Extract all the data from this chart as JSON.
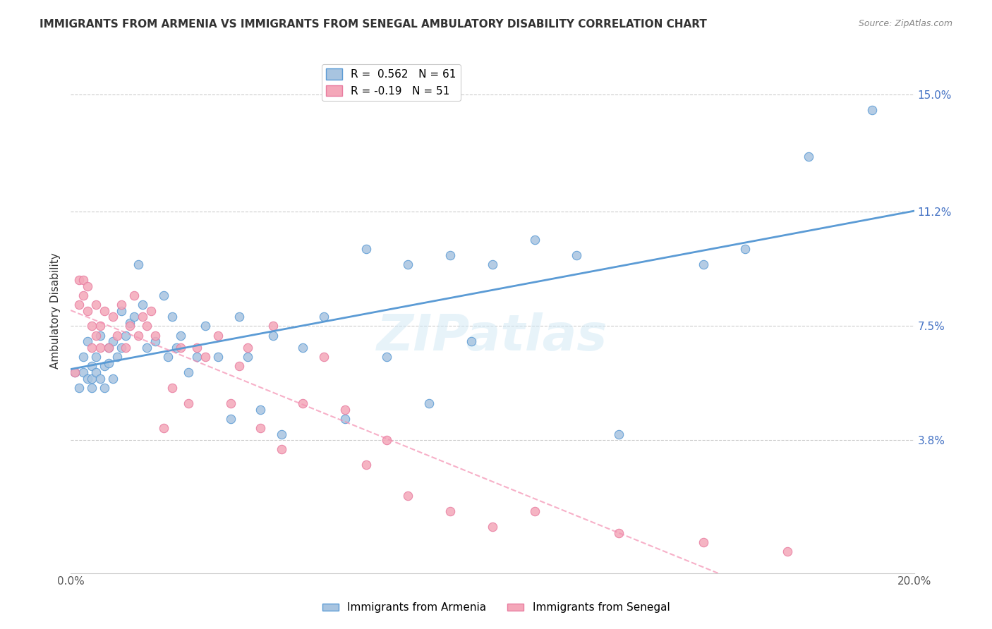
{
  "title": "IMMIGRANTS FROM ARMENIA VS IMMIGRANTS FROM SENEGAL AMBULATORY DISABILITY CORRELATION CHART",
  "source": "Source: ZipAtlas.com",
  "xlabel_bottom": "",
  "ylabel": "Ambulatory Disability",
  "xlim": [
    0.0,
    0.2
  ],
  "ylim": [
    -0.005,
    0.165
  ],
  "xticks": [
    0.0,
    0.04,
    0.08,
    0.12,
    0.16,
    0.2
  ],
  "xticklabels": [
    "0.0%",
    "",
    "",
    "",
    "",
    "20.0%"
  ],
  "ytick_positions": [
    0.038,
    0.075,
    0.112,
    0.15
  ],
  "ytick_labels": [
    "3.8%",
    "7.5%",
    "11.2%",
    "15.0%"
  ],
  "armenia_R": 0.562,
  "armenia_N": 61,
  "senegal_R": -0.19,
  "senegal_N": 51,
  "armenia_color": "#a8c4e0",
  "senegal_color": "#f4a7b9",
  "armenia_line_color": "#5b9bd5",
  "senegal_line_color": "#f48fb1",
  "watermark": "ZIPatlas",
  "armenia_x": [
    0.001,
    0.002,
    0.003,
    0.003,
    0.004,
    0.004,
    0.005,
    0.005,
    0.005,
    0.006,
    0.006,
    0.007,
    0.007,
    0.008,
    0.008,
    0.009,
    0.009,
    0.01,
    0.01,
    0.011,
    0.012,
    0.012,
    0.013,
    0.014,
    0.015,
    0.016,
    0.017,
    0.018,
    0.02,
    0.022,
    0.023,
    0.024,
    0.025,
    0.026,
    0.028,
    0.03,
    0.032,
    0.035,
    0.038,
    0.04,
    0.042,
    0.045,
    0.048,
    0.05,
    0.055,
    0.06,
    0.065,
    0.07,
    0.075,
    0.08,
    0.085,
    0.09,
    0.095,
    0.1,
    0.11,
    0.12,
    0.13,
    0.15,
    0.16,
    0.175,
    0.19
  ],
  "armenia_y": [
    0.06,
    0.055,
    0.065,
    0.06,
    0.07,
    0.058,
    0.062,
    0.058,
    0.055,
    0.065,
    0.06,
    0.058,
    0.072,
    0.062,
    0.055,
    0.068,
    0.063,
    0.07,
    0.058,
    0.065,
    0.08,
    0.068,
    0.072,
    0.076,
    0.078,
    0.095,
    0.082,
    0.068,
    0.07,
    0.085,
    0.065,
    0.078,
    0.068,
    0.072,
    0.06,
    0.065,
    0.075,
    0.065,
    0.045,
    0.078,
    0.065,
    0.048,
    0.072,
    0.04,
    0.068,
    0.078,
    0.045,
    0.1,
    0.065,
    0.095,
    0.05,
    0.098,
    0.07,
    0.095,
    0.103,
    0.098,
    0.04,
    0.095,
    0.1,
    0.13,
    0.145
  ],
  "senegal_x": [
    0.001,
    0.002,
    0.002,
    0.003,
    0.003,
    0.004,
    0.004,
    0.005,
    0.005,
    0.006,
    0.006,
    0.007,
    0.007,
    0.008,
    0.009,
    0.01,
    0.011,
    0.012,
    0.013,
    0.014,
    0.015,
    0.016,
    0.017,
    0.018,
    0.019,
    0.02,
    0.022,
    0.024,
    0.026,
    0.028,
    0.03,
    0.032,
    0.035,
    0.038,
    0.04,
    0.042,
    0.045,
    0.048,
    0.05,
    0.055,
    0.06,
    0.065,
    0.07,
    0.075,
    0.08,
    0.09,
    0.1,
    0.11,
    0.13,
    0.15,
    0.17
  ],
  "senegal_y": [
    0.06,
    0.09,
    0.082,
    0.085,
    0.09,
    0.088,
    0.08,
    0.075,
    0.068,
    0.082,
    0.072,
    0.068,
    0.075,
    0.08,
    0.068,
    0.078,
    0.072,
    0.082,
    0.068,
    0.075,
    0.085,
    0.072,
    0.078,
    0.075,
    0.08,
    0.072,
    0.042,
    0.055,
    0.068,
    0.05,
    0.068,
    0.065,
    0.072,
    0.05,
    0.062,
    0.068,
    0.042,
    0.075,
    0.035,
    0.05,
    0.065,
    0.048,
    0.03,
    0.038,
    0.02,
    0.015,
    0.01,
    0.015,
    0.008,
    0.005,
    0.002
  ]
}
